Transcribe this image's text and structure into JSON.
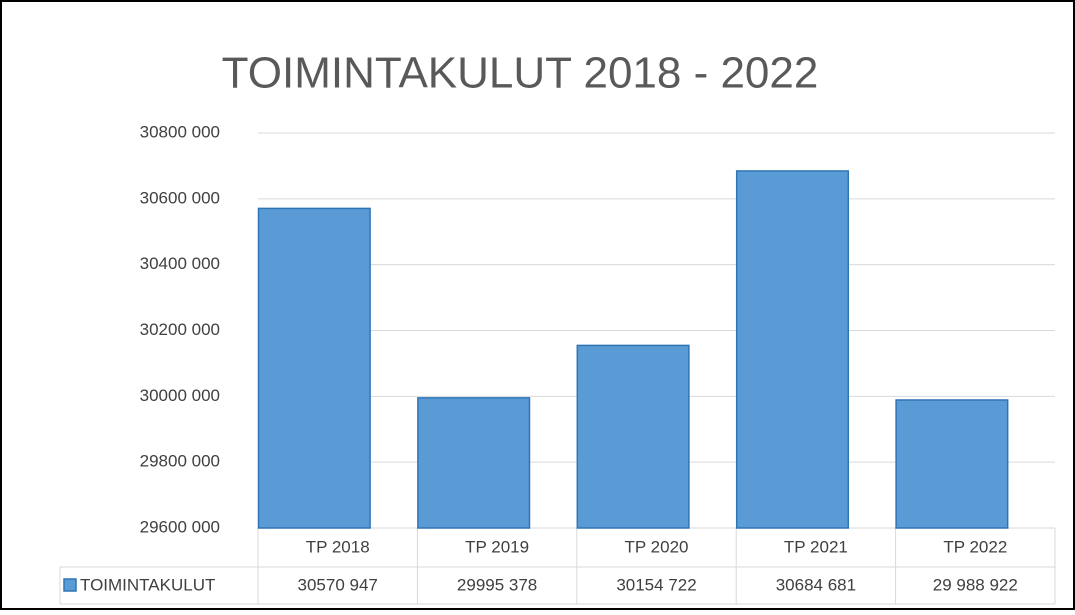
{
  "chart_data": {
    "type": "bar",
    "title": "TOIMINTAKULUT 2018 - 2022",
    "categories": [
      "TP 2018",
      "TP 2019",
      "TP 2020",
      "TP 2021",
      "TP 2022"
    ],
    "series": [
      {
        "name": "TOIMINTAKULUT",
        "color": "#5b9bd5",
        "values": [
          30570947,
          29995378,
          30154722,
          30684681,
          29988922
        ],
        "value_labels": [
          "30570 947",
          "29995 378",
          "30154 722",
          "30684 681",
          "29 988 922"
        ]
      }
    ],
    "ylim": [
      29600000,
      30800000
    ],
    "yticks": [
      {
        "value": 29600000,
        "label": "29600 000"
      },
      {
        "value": 29800000,
        "label": "29800 000"
      },
      {
        "value": 30000000,
        "label": "30000 000"
      },
      {
        "value": 30200000,
        "label": "30200 000"
      },
      {
        "value": 30400000,
        "label": "30400 000"
      },
      {
        "value": 30600000,
        "label": "30600 000"
      },
      {
        "value": 30800000,
        "label": "30800 000"
      }
    ],
    "grid": true
  }
}
